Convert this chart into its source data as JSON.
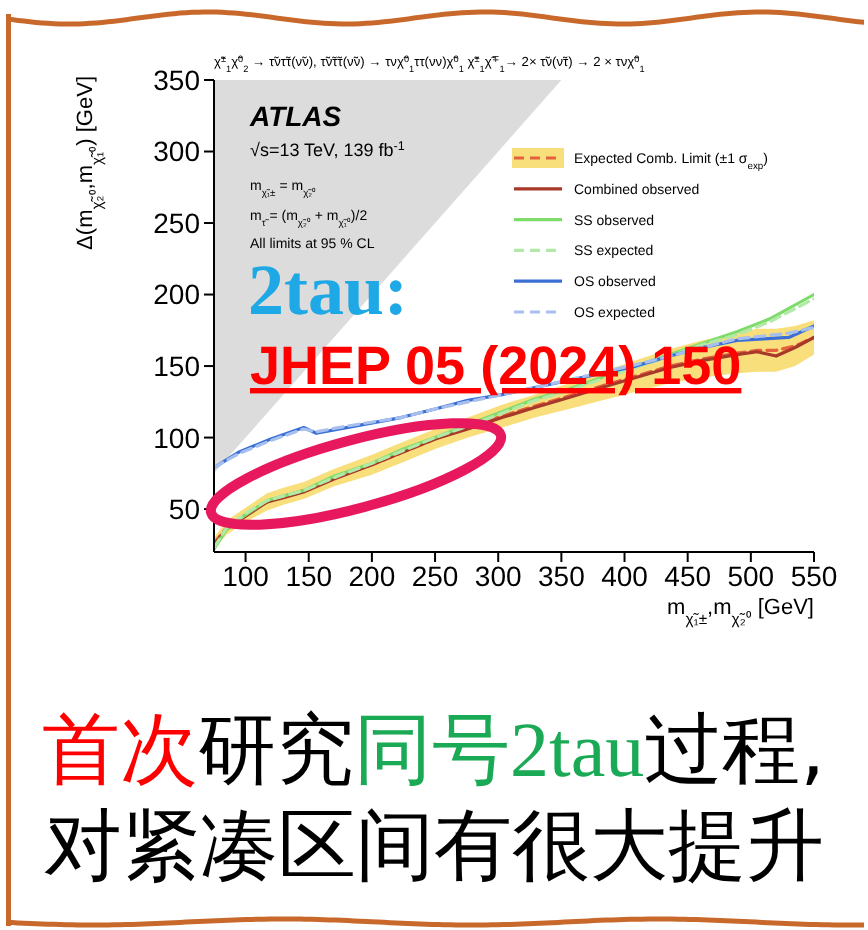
{
  "chart_data": {
    "type": "line",
    "title": "χ̃$^{±}$$_{1}$χ̃$^{0}$$_{2}$ → τ̃ντ̃τ(ν̃ν), τ̃ν̃τ̃τ(ν̃ν) → τνχ̃$^{0}$$_{1}$ττ(νν)χ̃$^{0}$$_{1}$ χ̃$^{±}$$_{1}$χ̃$^{∓}$$_{1}$→ 2× τ̃ν(ν̃τ) → 2 × τνχ̃$^{0}$$_{1}$",
    "xlabel": "m$_{χ̃₁±}$,m$_{χ̃₂⁰}$ [GeV]",
    "ylabel": "Δ(m$_{χ̃₂⁰}$,m$_{χ̃₁⁰}$) [GeV]",
    "xlim": [
      75,
      550
    ],
    "xticks": [
      100,
      150,
      200,
      250,
      300,
      350,
      400,
      450,
      500,
      550
    ],
    "ylim": [
      20,
      350
    ],
    "yticks": [
      50,
      100,
      150,
      200,
      250,
      300,
      350
    ],
    "legend": "top right",
    "marker": "none",
    "series": [
      {
        "type": "area",
        "color": "#dcdcdc",
        "x": [
          75,
          350
        ],
        "values": [
          75,
          350
        ]
      },
      {
        "name": "Expected Comb. Limit (±1 σ$_{exp}$)",
        "color": "#e5603c",
        "line_style": "dashed",
        "x": [
          75,
          85,
          100,
          117,
          130,
          146,
          170,
          200,
          225,
          250,
          276,
          303,
          329,
          356,
          382,
          409,
          436,
          462,
          489,
          505,
          520,
          535,
          550
        ],
        "values": [
          26,
          37,
          46,
          55,
          59,
          63,
          72,
          81,
          90,
          99,
          107,
          115,
          122,
          129,
          136,
          143,
          150,
          155,
          159,
          161,
          161,
          164,
          170
        ],
        "lower": [
          22,
          32,
          41,
          49,
          53,
          57,
          66,
          74,
          83,
          92,
          100,
          107,
          114,
          120,
          126,
          132,
          138,
          142,
          145,
          146,
          146,
          150,
          158
        ],
        "upper": [
          30,
          42,
          51,
          61,
          65,
          69,
          78,
          88,
          97,
          106,
          114,
          123,
          130,
          138,
          146,
          154,
          162,
          168,
          173,
          176,
          176,
          178,
          182
        ]
      },
      {
        "name": "Combined observed",
        "color": "#a8382a",
        "x": [
          75,
          85,
          100,
          117,
          130,
          146,
          170,
          200,
          225,
          250,
          276,
          303,
          329,
          356,
          382,
          409,
          436,
          462,
          489,
          505,
          520,
          535,
          550
        ],
        "values": [
          25,
          36,
          45,
          55,
          58,
          62,
          71,
          81,
          90,
          99,
          106,
          114,
          121,
          128,
          135,
          142,
          149,
          154,
          158,
          160,
          157,
          163,
          170
        ]
      },
      {
        "name": "SS observed",
        "color": "#7ddc6a",
        "x": [
          75,
          85,
          100,
          117,
          146,
          170,
          200,
          225,
          250,
          276,
          303,
          329,
          356,
          382,
          409,
          436,
          462,
          489,
          515,
          550
        ],
        "values": [
          22,
          36,
          46,
          56,
          63,
          73,
          82,
          92,
          100,
          109,
          118,
          127,
          134,
          142,
          150,
          158,
          166,
          174,
          183,
          200
        ]
      },
      {
        "name": "SS expected",
        "color": "#b2e9a6",
        "line_style": "dashed",
        "x": [
          75,
          85,
          100,
          117,
          146,
          170,
          200,
          225,
          250,
          276,
          303,
          329,
          356,
          382,
          409,
          436,
          462,
          489,
          515,
          550
        ],
        "values": [
          23,
          37,
          47,
          56,
          63,
          72,
          82,
          91,
          100,
          108,
          117,
          126,
          133,
          141,
          149,
          157,
          165,
          172,
          181,
          197
        ]
      },
      {
        "name": "OS observed",
        "color": "#3b6fd6",
        "x": [
          75,
          95,
          120,
          146,
          156,
          180,
          223,
          250,
          276,
          303,
          329,
          409,
          436,
          462,
          489,
          510,
          530,
          550
        ],
        "values": [
          79,
          90,
          99,
          107,
          103,
          107,
          114,
          120,
          126,
          130,
          135,
          150,
          157,
          163,
          168,
          169,
          170,
          178
        ]
      },
      {
        "name": "OS expected",
        "color": "#a6bfee",
        "line_style": "dashed",
        "x": [
          75,
          95,
          120,
          146,
          156,
          180,
          223,
          250,
          276,
          303,
          329,
          409,
          436,
          462,
          489,
          510,
          530,
          550
        ],
        "values": [
          79,
          89,
          98,
          106,
          104,
          108,
          114,
          120,
          125,
          130,
          135,
          151,
          157,
          163,
          169,
          171,
          173,
          177
        ]
      }
    ],
    "annotations": [
      "ATLAS",
      "√s=13 TeV, 139 fb$^{-1}$",
      "m$_{χ̃₁±}$ = m$_{χ̃₂⁰}$",
      "m$_{τ̃}$ = (m$_{χ̃₂⁰}$ + m$_{χ̃₁⁰}$)/2",
      "All limits at 95 % CL",
      "2tau:",
      "JHEP 05 (2024) 150",
      "首次",
      "研究",
      "同号",
      "2tau",
      "过程,",
      "对紧凑区间有很大提升"
    ]
  }
}
